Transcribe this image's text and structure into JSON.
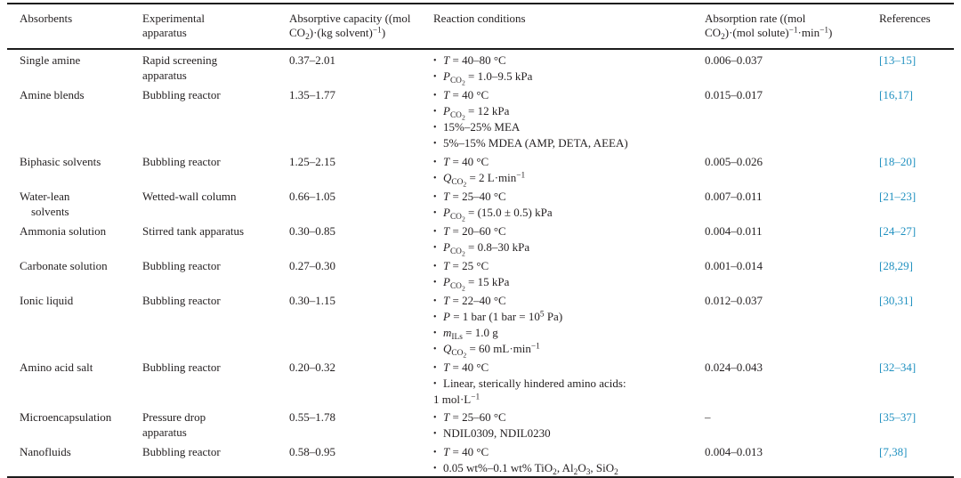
{
  "colors": {
    "link_blue": "#2191c0",
    "text": "#231f20",
    "rule": "#1c1c1c"
  },
  "table": {
    "columns": [
      {
        "label_html": "Absorbents"
      },
      {
        "label_html": "Experimental apparatus"
      },
      {
        "label_html": "Absorptive capacity ((mol CO<sub>2</sub>)·(kg solvent)<sup>−1</sup>)"
      },
      {
        "label_html": "Reaction conditions"
      },
      {
        "label_html": "Absorption rate ((mol CO<sub>2</sub>)·(mol solute)<sup>−1</sup>·min<sup>−1</sup>)"
      },
      {
        "label_html": "References"
      }
    ],
    "rows": [
      {
        "absorbent": [
          "Single amine"
        ],
        "apparatus": [
          "Rapid screening",
          "apparatus"
        ],
        "capacity": "0.37–2.01",
        "conditions": [
          {
            "html": "<i>T</i> = 40–80 °C",
            "bullet": true
          },
          {
            "html": "<i>P</i><sub>CO<sub>2</sub></sub> = 1.0–9.5 kPa",
            "bullet": true
          }
        ],
        "rate": "0.006–0.037",
        "reference": "[13–15]"
      },
      {
        "absorbent": [
          "Amine blends"
        ],
        "apparatus": [
          "Bubbling reactor"
        ],
        "capacity": "1.35–1.77",
        "conditions": [
          {
            "html": "<i>T</i> = 40 °C",
            "bullet": true
          },
          {
            "html": "<i>P</i><sub>CO<sub>2</sub></sub> = 12 kPa",
            "bullet": true
          },
          {
            "html": "15%–25% MEA",
            "bullet": true
          },
          {
            "html": "5%–15% MDEA (AMP, DETA, AEEA)",
            "bullet": true
          }
        ],
        "rate": "0.015–0.017",
        "reference": "[16,17]"
      },
      {
        "absorbent": [
          "Biphasic solvents"
        ],
        "apparatus": [
          "Bubbling reactor"
        ],
        "capacity": "1.25–2.15",
        "conditions": [
          {
            "html": "<i>T</i> = 40 °C",
            "bullet": true
          },
          {
            "html": "<i>Q</i><sub>CO<sub>2</sub></sub> = 2 L·min<sup>−1</sup>",
            "bullet": true
          }
        ],
        "rate": "0.005–0.026",
        "reference": "[18–20]"
      },
      {
        "absorbent": [
          "Water-lean",
          "solvents"
        ],
        "apparatus": [
          "Wetted-wall column"
        ],
        "capacity": "0.66–1.05",
        "conditions": [
          {
            "html": "<i>T</i> = 25–40 °C",
            "bullet": true
          },
          {
            "html": "<i>P</i><sub>CO<sub>2</sub></sub> = (15.0 ± 0.5) kPa",
            "bullet": true
          }
        ],
        "rate": "0.007–0.011",
        "reference": "[21–23]"
      },
      {
        "absorbent": [
          "Ammonia solution"
        ],
        "apparatus": [
          "Stirred tank apparatus"
        ],
        "capacity": "0.30–0.85",
        "conditions": [
          {
            "html": "<i>T</i> = 20–60 °C",
            "bullet": true
          },
          {
            "html": "<i>P</i><sub>CO<sub>2</sub></sub> = 0.8–30 kPa",
            "bullet": true
          }
        ],
        "rate": "0.004–0.011",
        "reference": "[24–27]"
      },
      {
        "absorbent": [
          "Carbonate solution"
        ],
        "apparatus": [
          "Bubbling reactor"
        ],
        "capacity": "0.27–0.30",
        "conditions": [
          {
            "html": "<i>T</i> = 25 °C",
            "bullet": true
          },
          {
            "html": "<i>P</i><sub>CO<sub>2</sub></sub> = 15 kPa",
            "bullet": true
          }
        ],
        "rate": "0.001–0.014",
        "reference": "[28,29]"
      },
      {
        "absorbent": [
          "Ionic liquid"
        ],
        "apparatus": [
          "Bubbling reactor"
        ],
        "capacity": "0.30–1.15",
        "conditions": [
          {
            "html": "<i>T</i> = 22–40 °C",
            "bullet": true
          },
          {
            "html": "<i>P</i> = 1 bar (1 bar = 10<sup>5</sup> Pa)",
            "bullet": true
          },
          {
            "html": "<i>m</i><sub>ILs</sub> = 1.0 g",
            "bullet": true
          },
          {
            "html": "<i>Q</i><sub>CO<sub>2</sub></sub> = 60 mL·min<sup>−1</sup>",
            "bullet": true
          }
        ],
        "rate": "0.012–0.037",
        "reference": "[30,31]"
      },
      {
        "absorbent": [
          "Amino acid salt"
        ],
        "apparatus": [
          "Bubbling reactor"
        ],
        "capacity": "0.20–0.32",
        "conditions": [
          {
            "html": "<i>T</i> = 40 °C",
            "bullet": true
          },
          {
            "html": "Linear, sterically hindered amino acids:",
            "bullet": true
          },
          {
            "html": "1 mol·L<sup>−1</sup>",
            "bullet": false
          }
        ],
        "rate": "0.024–0.043",
        "reference": "[32–34]"
      },
      {
        "absorbent": [
          "Microencapsulation"
        ],
        "apparatus": [
          "Pressure drop",
          "apparatus"
        ],
        "capacity": "0.55–1.78",
        "conditions": [
          {
            "html": "<i>T</i> = 25–60 °C",
            "bullet": true
          },
          {
            "html": "NDIL0309, NDIL0230",
            "bullet": true
          }
        ],
        "rate": "–",
        "reference": "[35–37]"
      },
      {
        "absorbent": [
          "Nanofluids"
        ],
        "apparatus": [
          "Bubbling reactor"
        ],
        "capacity": "0.58–0.95",
        "conditions": [
          {
            "html": "<i>T</i> = 40 °C",
            "bullet": true
          },
          {
            "html": "0.05 wt%–0.1 wt% TiO<sub>2</sub>, Al<sub>2</sub>O<sub>3</sub>, SiO<sub>2</sub>",
            "bullet": true
          }
        ],
        "rate": "0.004–0.013",
        "reference": "[7,38]"
      }
    ]
  }
}
